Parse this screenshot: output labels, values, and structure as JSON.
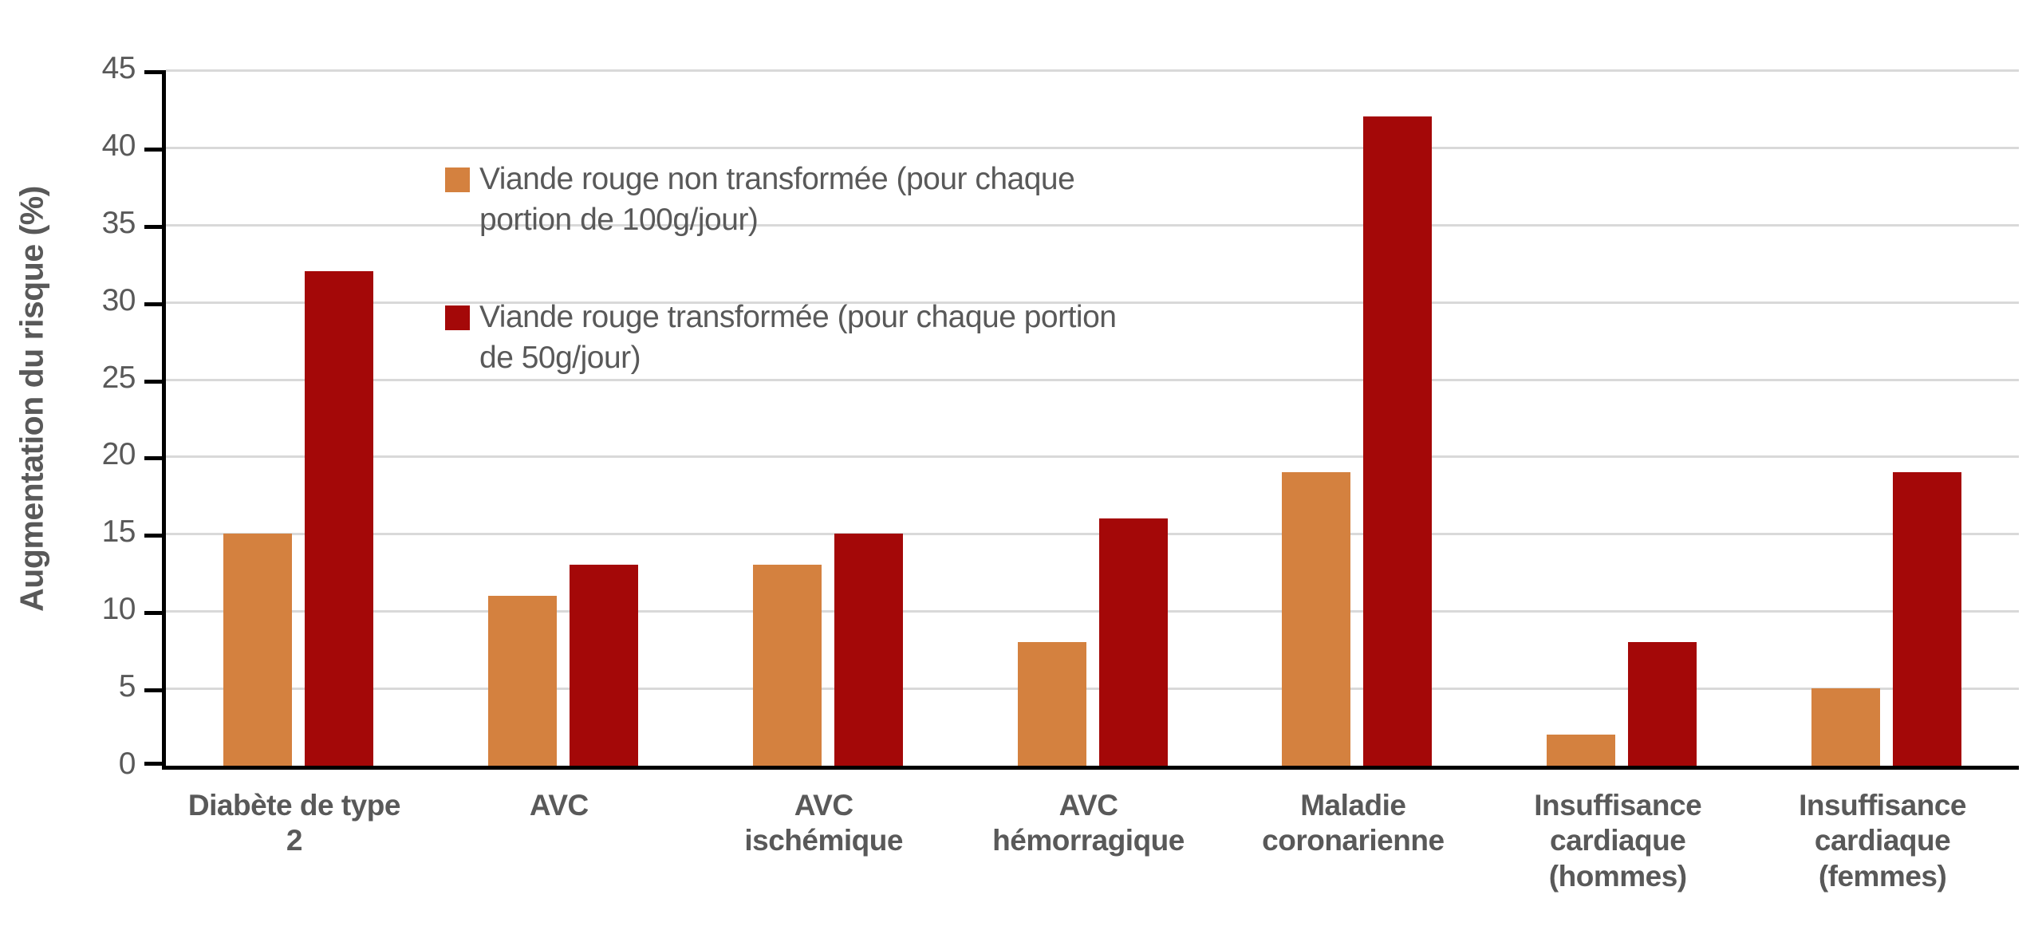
{
  "chart_data": {
    "type": "bar",
    "title": "",
    "ylabel": "Augmentation du risque (%)",
    "xlabel": "",
    "ylim": [
      0,
      45
    ],
    "yticks": [
      0,
      5,
      10,
      15,
      20,
      25,
      30,
      35,
      40,
      45
    ],
    "grid": true,
    "legend_position": "upper-left-inside",
    "categories": [
      "Diabète de type 2",
      "AVC",
      "AVC ischémique",
      "AVC hémorragique",
      "Maladie coronarienne",
      "Insuffisance cardiaque (hommes)",
      "Insuffisance cardiaque (femmes)"
    ],
    "series": [
      {
        "name": "Viande rouge non transformée (pour chaque portion de 100g/jour)",
        "color": "#D4813F",
        "values": [
          15,
          11,
          13,
          8,
          19,
          2,
          5
        ]
      },
      {
        "name": "Viande rouge transformée (pour chaque portion de 50g/jour)",
        "color": "#A40808",
        "values": [
          32,
          13,
          15,
          16,
          42,
          8,
          19
        ]
      }
    ],
    "colors": {
      "axis_line": "#000000",
      "gridline": "#D9D9D9",
      "text": "#595959",
      "background": "#FFFFFF"
    }
  }
}
